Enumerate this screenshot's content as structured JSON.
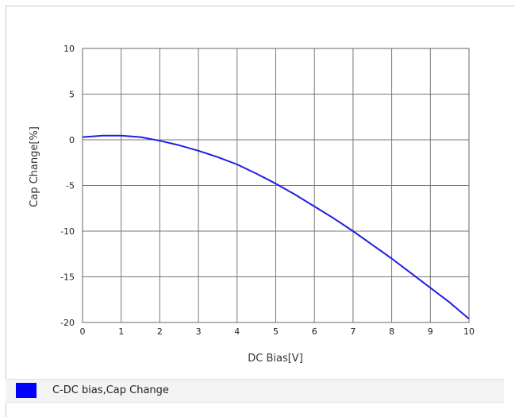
{
  "chart_data": {
    "type": "line",
    "xlabel": "DC Bias[V]",
    "ylabel": "Cap Change[%]",
    "xlim": [
      0,
      10
    ],
    "ylim": [
      -20,
      10
    ],
    "x_ticks": [
      "0",
      "1",
      "2",
      "3",
      "4",
      "5",
      "6",
      "7",
      "8",
      "9",
      "10"
    ],
    "y_ticks": [
      "10",
      "5",
      "0",
      "-5",
      "-10",
      "-15",
      "-20"
    ],
    "grid": true,
    "legend_position": "bottom",
    "series": [
      {
        "name": "C-DC bias,Cap Change",
        "color": "#1e1ee6",
        "x": [
          0,
          0.5,
          1,
          1.5,
          2,
          2.5,
          3,
          3.5,
          4,
          4.5,
          5,
          5.5,
          6,
          6.5,
          7,
          7.5,
          8,
          8.5,
          9,
          9.5,
          10
        ],
        "y": [
          0.3,
          0.45,
          0.45,
          0.3,
          -0.1,
          -0.6,
          -1.2,
          -1.9,
          -2.7,
          -3.7,
          -4.8,
          -6.0,
          -7.3,
          -8.6,
          -10.0,
          -11.5,
          -13.0,
          -14.6,
          -16.2,
          -17.8,
          -19.6
        ]
      }
    ]
  },
  "legend": {
    "swatch_color": "#0000ff",
    "label": "C-DC bias,Cap Change"
  }
}
